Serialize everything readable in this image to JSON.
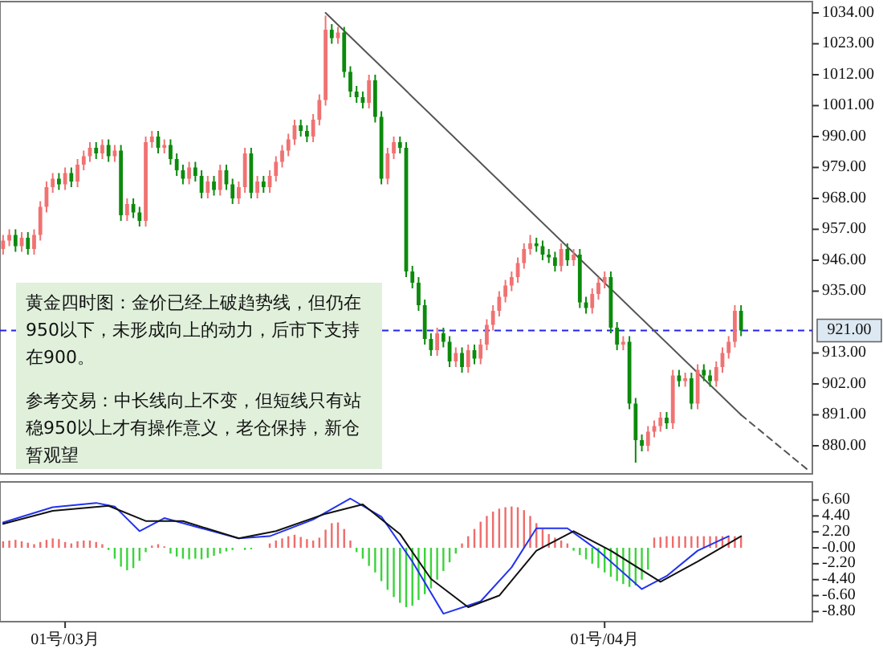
{
  "chart_data": [
    {
      "type": "candlestick",
      "ylim": [
        870,
        1038
      ],
      "tick_labels": "y",
      "categories": [
        null,
        null,
        null,
        null,
        null,
        null,
        null,
        null,
        null,
        null,
        null,
        null,
        null,
        null,
        null,
        null,
        null,
        null,
        null,
        null,
        null,
        null,
        null,
        null,
        null,
        null,
        null,
        null,
        null,
        null,
        null,
        null,
        null,
        null,
        null,
        null,
        null,
        null,
        null,
        null,
        null,
        null,
        null,
        null,
        null,
        null,
        null,
        null,
        null,
        null,
        null,
        null,
        null,
        null,
        null,
        null,
        null,
        null,
        null,
        null,
        null,
        null,
        null,
        null,
        null,
        null,
        null,
        null,
        null,
        null,
        null,
        null,
        null,
        null,
        null,
        null,
        null,
        null,
        null,
        null,
        null,
        null,
        null,
        null,
        null,
        null,
        null,
        null,
        null,
        null,
        null,
        null,
        null,
        null,
        null,
        null,
        null,
        null,
        null,
        null,
        null,
        null,
        null,
        null,
        null,
        null,
        null,
        null,
        null,
        null,
        null,
        null,
        null,
        null,
        null,
        null,
        null,
        null,
        null,
        null,
        null,
        null,
        null,
        null,
        null,
        null,
        null,
        null,
        null,
        null,
        null
      ],
      "yticks": [
        {
          "value": 880,
          "label": "880.00"
        },
        {
          "value": 891,
          "label": "891.00"
        },
        {
          "value": 902,
          "label": "902.00"
        },
        {
          "value": 913,
          "label": "913.00"
        },
        {
          "value": 935,
          "label": "935.00"
        },
        {
          "value": 946,
          "label": "946.00"
        },
        {
          "value": 957,
          "label": "957.00"
        },
        {
          "value": 968,
          "label": "968.00"
        },
        {
          "value": 979,
          "label": "979.00"
        },
        {
          "value": 990,
          "label": "990.00"
        },
        {
          "value": 1001,
          "label": "1001.00"
        },
        {
          "value": 1012,
          "label": "1012.00"
        },
        {
          "value": 1023,
          "label": "1023.00"
        },
        {
          "value": 1034,
          "label": "1034.00"
        }
      ],
      "ref_lines": [
        {
          "axis": "y",
          "value": 921,
          "label": "921.00",
          "color": "#2222ee",
          "line_style": "dashed"
        }
      ],
      "annotations": [
        "黄金四时图：金价已经上破趋势线，但仍在950以下，未形成向上的动力，后市下支持在900。",
        "参考交易：中长线向上不变，但短线只有站稳950以上才有操作意义，老仓保持，新仓暂观望"
      ],
      "ohlc": [
        [
          950,
          955,
          948,
          953
        ],
        [
          953,
          957,
          951,
          955
        ],
        [
          955,
          957,
          949,
          951
        ],
        [
          951,
          956,
          949,
          954
        ],
        [
          954,
          956,
          948,
          950
        ],
        [
          950,
          957,
          948,
          955
        ],
        [
          955,
          967,
          953,
          965
        ],
        [
          965,
          974,
          963,
          972
        ],
        [
          972,
          977,
          970,
          975
        ],
        [
          975,
          977,
          971,
          973
        ],
        [
          973,
          979,
          971,
          977
        ],
        [
          977,
          979,
          972,
          974
        ],
        [
          974,
          982,
          972,
          980
        ],
        [
          980,
          985,
          978,
          983
        ],
        [
          983,
          988,
          981,
          986
        ],
        [
          986,
          988,
          982,
          984
        ],
        [
          984,
          989,
          982,
          987
        ],
        [
          987,
          989,
          981,
          983
        ],
        [
          983,
          987,
          981,
          985
        ],
        [
          985,
          987,
          960,
          962
        ],
        [
          962,
          968,
          960,
          966
        ],
        [
          966,
          968,
          961,
          963
        ],
        [
          963,
          965,
          958,
          960
        ],
        [
          960,
          990,
          958,
          988
        ],
        [
          988,
          992,
          986,
          990
        ],
        [
          990,
          992,
          984,
          986
        ],
        [
          986,
          989,
          984,
          987
        ],
        [
          987,
          989,
          980,
          982
        ],
        [
          982,
          984,
          976,
          978
        ],
        [
          978,
          980,
          973,
          975
        ],
        [
          975,
          981,
          973,
          979
        ],
        [
          979,
          981,
          974,
          976
        ],
        [
          976,
          978,
          968,
          970
        ],
        [
          970,
          976,
          968,
          974
        ],
        [
          974,
          976,
          969,
          971
        ],
        [
          971,
          980,
          969,
          978
        ],
        [
          978,
          980,
          971,
          973
        ],
        [
          973,
          975,
          966,
          968
        ],
        [
          968,
          974,
          966,
          972
        ],
        [
          972,
          986,
          970,
          984
        ],
        [
          984,
          986,
          968,
          970
        ],
        [
          970,
          976,
          968,
          974
        ],
        [
          974,
          976,
          970,
          972
        ],
        [
          972,
          978,
          970,
          976
        ],
        [
          976,
          983,
          974,
          981
        ],
        [
          981,
          987,
          979,
          985
        ],
        [
          985,
          991,
          983,
          989
        ],
        [
          989,
          996,
          987,
          994
        ],
        [
          994,
          996,
          990,
          992
        ],
        [
          992,
          994,
          988,
          990
        ],
        [
          990,
          998,
          988,
          996
        ],
        [
          996,
          1005,
          994,
          1003
        ],
        [
          1003,
          1033,
          1001,
          1028
        ],
        [
          1028,
          1030,
          1023,
          1025
        ],
        [
          1025,
          1029,
          1023,
          1027
        ],
        [
          1027,
          1029,
          1011,
          1013
        ],
        [
          1013,
          1015,
          1004,
          1006
        ],
        [
          1006,
          1008,
          1002,
          1004
        ],
        [
          1004,
          1006,
          1000,
          1002
        ],
        [
          1002,
          1012,
          1000,
          1010
        ],
        [
          1010,
          1012,
          995,
          997
        ],
        [
          997,
          999,
          973,
          975
        ],
        [
          975,
          986,
          973,
          984
        ],
        [
          984,
          990,
          982,
          988
        ],
        [
          988,
          990,
          984,
          986
        ],
        [
          986,
          988,
          940,
          942
        ],
        [
          942,
          944,
          936,
          938
        ],
        [
          938,
          940,
          928,
          930
        ],
        [
          930,
          932,
          916,
          918
        ],
        [
          918,
          920,
          912,
          914
        ],
        [
          914,
          922,
          912,
          920
        ],
        [
          920,
          922,
          915,
          917
        ],
        [
          917,
          919,
          908,
          910
        ],
        [
          910,
          915,
          908,
          913
        ],
        [
          913,
          915,
          906,
          908
        ],
        [
          908,
          916,
          906,
          914
        ],
        [
          914,
          916,
          909,
          911
        ],
        [
          911,
          918,
          909,
          916
        ],
        [
          916,
          925,
          914,
          923
        ],
        [
          923,
          930,
          921,
          928
        ],
        [
          928,
          935,
          926,
          933
        ],
        [
          933,
          939,
          931,
          937
        ],
        [
          937,
          942,
          935,
          940
        ],
        [
          940,
          947,
          938,
          945
        ],
        [
          945,
          952,
          943,
          950
        ],
        [
          950,
          955,
          948,
          952
        ],
        [
          952,
          954,
          949,
          951
        ],
        [
          951,
          953,
          946,
          948
        ],
        [
          948,
          950,
          945,
          947
        ],
        [
          947,
          949,
          942,
          944
        ],
        [
          944,
          952,
          942,
          950
        ],
        [
          950,
          952,
          944,
          946
        ],
        [
          946,
          950,
          944,
          948
        ],
        [
          948,
          950,
          929,
          931
        ],
        [
          931,
          933,
          927,
          929
        ],
        [
          929,
          936,
          927,
          934
        ],
        [
          934,
          940,
          932,
          938
        ],
        [
          938,
          942,
          936,
          940
        ],
        [
          940,
          942,
          920,
          922
        ],
        [
          922,
          924,
          914,
          916
        ],
        [
          916,
          919,
          914,
          917
        ],
        [
          917,
          919,
          893,
          895
        ],
        [
          895,
          897,
          874,
          882
        ],
        [
          882,
          884,
          878,
          880
        ],
        [
          880,
          887,
          878,
          885
        ],
        [
          885,
          889,
          883,
          887
        ],
        [
          887,
          892,
          885,
          890
        ],
        [
          890,
          892,
          886,
          888
        ],
        [
          888,
          907,
          886,
          905
        ],
        [
          905,
          907,
          901,
          903
        ],
        [
          903,
          906,
          901,
          904
        ],
        [
          904,
          906,
          893,
          895
        ],
        [
          895,
          909,
          893,
          907
        ],
        [
          907,
          909,
          903,
          905
        ],
        [
          905,
          907,
          901,
          903
        ],
        [
          903,
          910,
          901,
          908
        ],
        [
          908,
          915,
          906,
          913
        ],
        [
          913,
          919,
          911,
          917
        ],
        [
          917,
          930,
          915,
          928
        ],
        [
          928,
          930,
          919,
          921
        ],
        null,
        null,
        null,
        null,
        null,
        null,
        null,
        null,
        null,
        null,
        null
      ],
      "series": [
        {
          "type": "line",
          "color": "#555555",
          "values": [
            null,
            null,
            null,
            null,
            null,
            null,
            null,
            null,
            null,
            null,
            null,
            null,
            null,
            null,
            null,
            null,
            null,
            null,
            null,
            null,
            null,
            null,
            null,
            null,
            null,
            null,
            null,
            null,
            null,
            null,
            null,
            null,
            null,
            null,
            null,
            null,
            null,
            null,
            null,
            null,
            null,
            null,
            null,
            null,
            null,
            null,
            null,
            null,
            null,
            null,
            null,
            null,
            1034,
            null,
            null,
            null,
            null,
            null,
            null,
            null,
            null,
            null,
            null,
            null,
            null,
            null,
            null,
            null,
            null,
            null,
            null,
            null,
            null,
            null,
            null,
            null,
            null,
            null,
            null,
            null,
            null,
            null,
            null,
            null,
            null,
            null,
            null,
            null,
            null,
            null,
            null,
            null,
            null,
            null,
            null,
            null,
            null,
            null,
            null,
            null,
            null,
            null,
            null,
            null,
            null,
            null,
            null,
            null,
            null,
            null,
            null,
            null,
            null,
            null,
            null,
            null,
            null,
            null,
            null,
            891,
            null,
            null,
            null,
            null,
            null,
            null,
            null,
            null,
            null,
            null,
            null
          ]
        },
        {
          "type": "line",
          "color": "#555555",
          "line_style": "dashed",
          "values": [
            null,
            null,
            null,
            null,
            null,
            null,
            null,
            null,
            null,
            null,
            null,
            null,
            null,
            null,
            null,
            null,
            null,
            null,
            null,
            null,
            null,
            null,
            null,
            null,
            null,
            null,
            null,
            null,
            null,
            null,
            null,
            null,
            null,
            null,
            null,
            null,
            null,
            null,
            null,
            null,
            null,
            null,
            null,
            null,
            null,
            null,
            null,
            null,
            null,
            null,
            null,
            null,
            null,
            null,
            null,
            null,
            null,
            null,
            null,
            null,
            null,
            null,
            null,
            null,
            null,
            null,
            null,
            null,
            null,
            null,
            null,
            null,
            null,
            null,
            null,
            null,
            null,
            null,
            null,
            null,
            null,
            null,
            null,
            null,
            null,
            null,
            null,
            null,
            null,
            null,
            null,
            null,
            null,
            null,
            null,
            null,
            null,
            null,
            null,
            null,
            null,
            null,
            null,
            null,
            null,
            null,
            null,
            null,
            null,
            null,
            null,
            null,
            null,
            null,
            null,
            null,
            null,
            null,
            null,
            891,
            null,
            null,
            null,
            null,
            null,
            null,
            null,
            null,
            null,
            null,
            871
          ]
        }
      ]
    },
    {
      "type": "bar",
      "ylim": [
        -10.2,
        9.1
      ],
      "categories": [
        null,
        null,
        null,
        null,
        null,
        null,
        null,
        null,
        null,
        null,
        "01号/03月",
        null,
        null,
        null,
        null,
        null,
        null,
        null,
        null,
        null,
        null,
        null,
        null,
        null,
        null,
        null,
        null,
        null,
        null,
        null,
        null,
        null,
        null,
        null,
        null,
        null,
        null,
        null,
        null,
        null,
        null,
        null,
        null,
        null,
        null,
        null,
        null,
        null,
        null,
        null,
        null,
        null,
        null,
        null,
        null,
        null,
        null,
        null,
        null,
        null,
        null,
        null,
        null,
        null,
        null,
        null,
        null,
        null,
        null,
        null,
        null,
        null,
        null,
        null,
        null,
        null,
        null,
        null,
        null,
        null,
        null,
        null,
        null,
        null,
        null,
        null,
        null,
        null,
        null,
        null,
        null,
        null,
        null,
        null,
        null,
        null,
        null,
        "01号/04月",
        null,
        null,
        null,
        null,
        null,
        null,
        null,
        null,
        null,
        null,
        null,
        null,
        null,
        null,
        null,
        null,
        null,
        null,
        null,
        null,
        null,
        null,
        null,
        null,
        null,
        null,
        null,
        null,
        null,
        null,
        null,
        null,
        null
      ],
      "yticks": [
        {
          "value": 6.6,
          "label": "6.60"
        },
        {
          "value": 4.4,
          "label": "4.40"
        },
        {
          "value": 2.2,
          "label": "2.20"
        },
        {
          "value": 0,
          "label": "-0.00"
        },
        {
          "value": -2.2,
          "label": "-2.20"
        },
        {
          "value": -4.4,
          "label": "-4.40"
        },
        {
          "value": -6.6,
          "label": "-6.60"
        },
        {
          "value": -8.8,
          "label": "-8.80"
        }
      ],
      "series": [
        {
          "type": "bar",
          "colors": [
            "#f06b6b",
            "#f06b6b",
            "#f06b6b",
            "#f06b6b",
            "#f06b6b",
            "#f06b6b",
            "#f06b6b",
            "#f06b6b",
            "#f06b6b",
            "#f06b6b",
            "#f06b6b",
            "#f06b6b",
            "#f06b6b",
            "#f06b6b",
            "#f06b6b",
            "#f06b6b",
            "#f06b6b",
            "#3ad43a",
            "#3ad43a",
            "#3ad43a",
            "#3ad43a",
            "#3ad43a",
            "#3ad43a",
            "#3ad43a",
            "#f06b6b",
            "#f06b6b",
            "#f06b6b",
            "#3ad43a",
            "#3ad43a",
            "#3ad43a",
            "#3ad43a",
            "#3ad43a",
            "#3ad43a",
            "#3ad43a",
            "#3ad43a",
            "#3ad43a",
            "#3ad43a",
            "#3ad43a",
            null,
            "#3ad43a",
            "#3ad43a",
            null,
            null,
            "#f06b6b",
            "#f06b6b",
            "#f06b6b",
            "#f06b6b",
            "#f06b6b",
            "#f06b6b",
            "#f06b6b",
            "#f06b6b",
            "#f06b6b",
            "#f06b6b",
            "#f06b6b",
            "#f06b6b",
            "#f06b6b",
            "#f06b6b",
            "#3ad43a",
            "#3ad43a",
            "#3ad43a",
            "#3ad43a",
            "#3ad43a",
            "#3ad43a",
            "#3ad43a",
            "#3ad43a",
            "#3ad43a",
            "#3ad43a",
            "#3ad43a",
            "#3ad43a",
            "#3ad43a",
            "#3ad43a",
            "#3ad43a",
            "#3ad43a",
            "#3ad43a",
            "#f06b6b",
            "#f06b6b",
            "#f06b6b",
            "#f06b6b",
            "#f06b6b",
            "#f06b6b",
            "#f06b6b",
            "#f06b6b",
            "#f06b6b",
            "#f06b6b",
            "#f06b6b",
            "#f06b6b",
            "#f06b6b",
            "#f06b6b",
            "#f06b6b",
            "#f06b6b",
            "#f06b6b",
            "#f06b6b",
            "#3ad43a",
            "#3ad43a",
            "#3ad43a",
            "#3ad43a",
            "#3ad43a",
            "#3ad43a",
            "#3ad43a",
            "#3ad43a",
            "#3ad43a",
            "#3ad43a",
            "#3ad43a",
            "#3ad43a",
            "#3ad43a",
            "#f06b6b",
            "#f06b6b",
            "#f06b6b",
            "#f06b6b",
            "#f06b6b",
            "#f06b6b",
            "#f06b6b",
            "#f06b6b",
            "#f06b6b",
            "#f06b6b",
            "#f06b6b",
            "#f06b6b",
            "#f06b6b",
            "#f06b6b",
            "#f06b6b",
            null,
            null,
            null,
            null,
            null,
            null,
            null,
            null,
            null,
            null,
            null
          ],
          "values": [
            0.9,
            1.0,
            1.1,
            0.9,
            0.7,
            0.5,
            0.8,
            1.1,
            1.3,
            1.2,
            0.8,
            0.6,
            0.9,
            1.0,
            1.0,
            0.8,
            0.5,
            -0.3,
            -1.5,
            -2.6,
            -3.1,
            -2.8,
            -1.8,
            -0.6,
            0.3,
            0.5,
            0.2,
            -0.8,
            -1.2,
            -1.5,
            -1.6,
            -1.5,
            -1.6,
            -1.4,
            -1.1,
            -0.8,
            -0.5,
            -0.3,
            null,
            -0.3,
            -0.2,
            null,
            null,
            0.6,
            1.0,
            1.3,
            1.6,
            1.8,
            1.5,
            1.2,
            1.0,
            1.4,
            2.5,
            3.4,
            3.5,
            2.6,
            1.0,
            -0.6,
            -1.5,
            -2.5,
            -3.4,
            -4.6,
            -5.8,
            -6.8,
            -7.6,
            -8.2,
            -8.0,
            -7.2,
            -6.4,
            -5.6,
            -4.4,
            -3.2,
            -2.0,
            -0.8,
            0.6,
            1.6,
            2.6,
            3.6,
            4.4,
            5.0,
            5.4,
            5.6,
            5.7,
            5.6,
            5.2,
            4.4,
            3.4,
            2.6,
            1.9,
            1.4,
            1.0,
            0.6,
            -0.4,
            -1.0,
            -1.6,
            -2.2,
            -2.8,
            -3.4,
            -4.0,
            -4.6,
            -5.0,
            -5.4,
            -5.2,
            -4.4,
            -3.0,
            1.4,
            1.5,
            1.6,
            1.6,
            1.6,
            1.6,
            1.6,
            1.6,
            1.6,
            1.6,
            1.6,
            1.6,
            1.6,
            1.6,
            1.6,
            null,
            null,
            null,
            null,
            null,
            null,
            null,
            null,
            null,
            null,
            null
          ]
        },
        {
          "type": "line",
          "color": "#2233ee",
          "values": [
            3.5,
            null,
            null,
            null,
            null,
            null,
            null,
            null,
            5.6,
            null,
            null,
            null,
            null,
            null,
            null,
            6.2,
            null,
            null,
            5.7,
            null,
            null,
            null,
            2.3,
            null,
            null,
            null,
            4.1,
            null,
            null,
            null,
            null,
            null,
            2.7,
            null,
            null,
            null,
            null,
            null,
            1.3,
            null,
            null,
            null,
            null,
            1.6,
            null,
            null,
            null,
            null,
            null,
            null,
            3.9,
            null,
            null,
            null,
            null,
            null,
            6.8,
            null,
            null,
            null,
            null,
            4.3,
            null,
            null,
            null,
            null,
            -1.9,
            null,
            null,
            null,
            null,
            -9.1,
            null,
            null,
            null,
            null,
            null,
            -7.4,
            null,
            null,
            null,
            null,
            -2.7,
            null,
            null,
            null,
            2.7,
            null,
            null,
            null,
            null,
            2.7,
            null,
            null,
            null,
            null,
            -0.4,
            null,
            null,
            null,
            null,
            null,
            null,
            -5.7,
            null,
            null,
            null,
            -3.9,
            null,
            null,
            null,
            null,
            -0.4,
            null,
            null,
            null,
            null,
            1.6,
            null,
            null,
            null,
            null,
            null,
            null,
            null,
            null,
            null,
            null,
            null,
            null,
            null
          ]
        },
        {
          "type": "line",
          "color": "#111111",
          "values": [
            3.3,
            null,
            null,
            null,
            null,
            null,
            null,
            null,
            5.1,
            null,
            null,
            null,
            null,
            null,
            null,
            null,
            null,
            5.8,
            null,
            null,
            null,
            null,
            null,
            3.7,
            null,
            null,
            null,
            null,
            null,
            3.7,
            null,
            null,
            null,
            null,
            null,
            null,
            null,
            null,
            1.3,
            null,
            null,
            null,
            null,
            null,
            2.3,
            null,
            null,
            null,
            null,
            null,
            null,
            null,
            4.7,
            null,
            null,
            null,
            null,
            null,
            6.0,
            null,
            null,
            null,
            null,
            null,
            1.9,
            null,
            null,
            null,
            null,
            -4.3,
            null,
            null,
            null,
            null,
            null,
            -8.2,
            null,
            null,
            null,
            null,
            -6.6,
            null,
            null,
            null,
            null,
            null,
            -0.4,
            null,
            null,
            null,
            null,
            null,
            2.3,
            null,
            null,
            null,
            null,
            null,
            -0.4,
            null,
            null,
            null,
            null,
            null,
            null,
            null,
            -4.7,
            null,
            null,
            null,
            null,
            null,
            -1.9,
            null,
            null,
            null,
            null,
            null,
            null,
            1.6,
            null,
            null,
            null,
            null,
            null,
            null,
            null,
            null,
            null,
            null,
            null
          ]
        }
      ]
    }
  ]
}
